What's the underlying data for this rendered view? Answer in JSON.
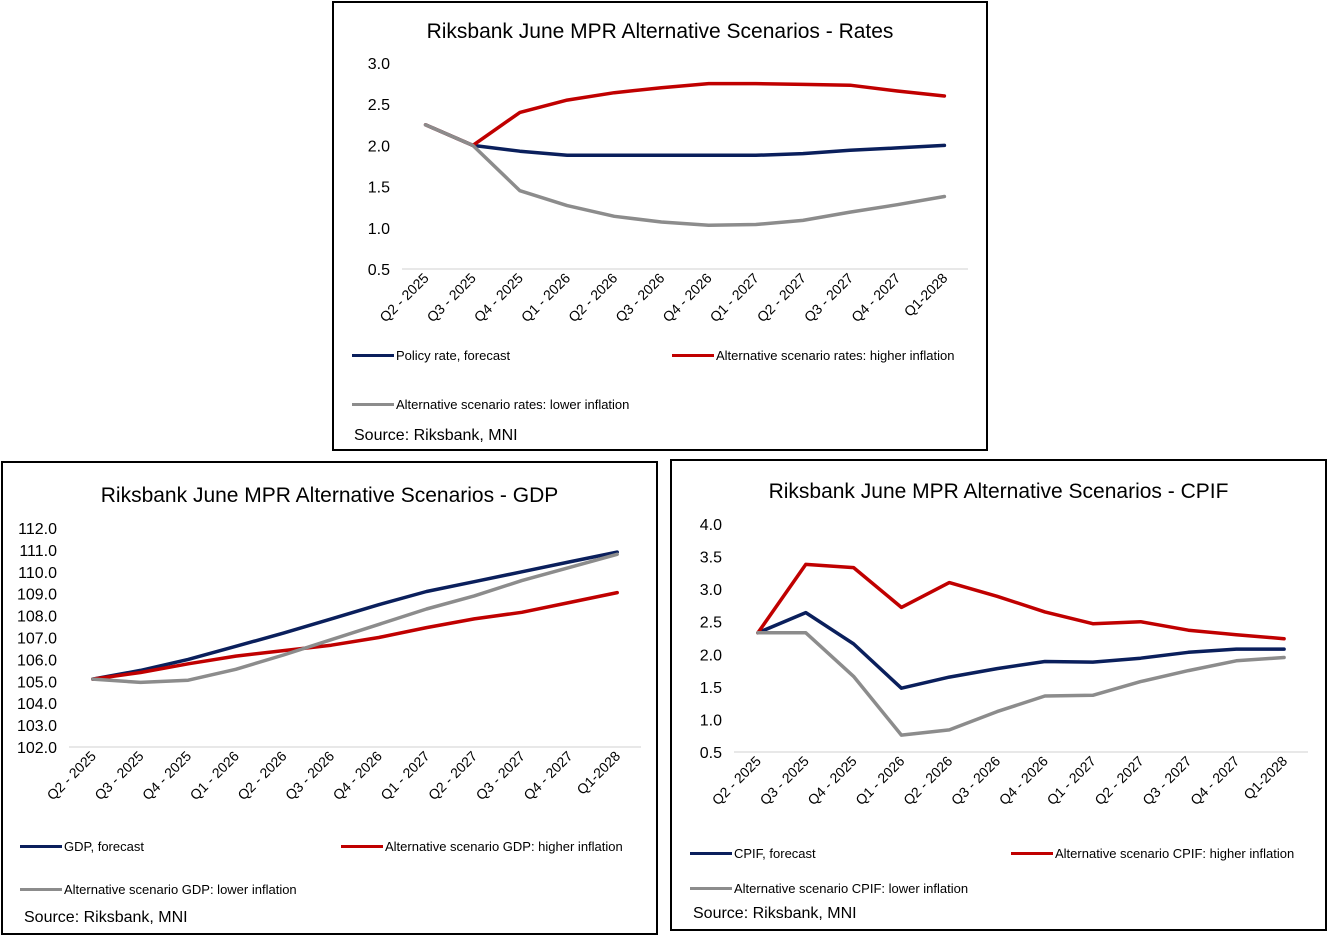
{
  "chart_data": [
    {
      "id": "rates",
      "type": "line",
      "title": "Riksbank  June  MPR Alternative  Scenarios - Rates",
      "source": "Source: Riksbank, MNI",
      "categories": [
        "Q2 - 2025",
        "Q3 - 2025",
        "Q4 - 2025",
        "Q1 - 2026",
        "Q2 - 2026",
        "Q3 - 2026",
        "Q4 - 2026",
        "Q1 - 2027",
        "Q2 - 2027",
        "Q3 - 2027",
        "Q4 - 2027",
        "Q1-2028"
      ],
      "ylim": [
        0.5,
        3.0
      ],
      "yticks": [
        "0.5",
        "1.0",
        "1.5",
        "2.0",
        "2.5",
        "3.0"
      ],
      "series": [
        {
          "name": "Policy rate, forecast",
          "color": "#0a1f5c",
          "values": [
            2.25,
            2.0,
            1.93,
            1.88,
            1.88,
            1.88,
            1.88,
            1.88,
            1.9,
            1.94,
            1.97,
            2.0
          ]
        },
        {
          "name": "Alternative scenario rates: higher inflation",
          "color": "#c00000",
          "values": [
            2.25,
            2.0,
            2.4,
            2.55,
            2.64,
            2.7,
            2.75,
            2.75,
            2.74,
            2.73,
            2.66,
            2.6
          ]
        },
        {
          "name": "Alternative scenario rates: lower inflation",
          "color": "#8c8c8c",
          "values": [
            2.25,
            2.0,
            1.45,
            1.27,
            1.14,
            1.07,
            1.03,
            1.04,
            1.09,
            1.19,
            1.28,
            1.38
          ]
        }
      ]
    },
    {
      "id": "gdp",
      "type": "line",
      "title": "Riksbank June MPR Alternative Scenarios - GDP",
      "source": "Source: Riksbank, MNI",
      "categories": [
        "Q2 - 2025",
        "Q3 - 2025",
        "Q4 - 2025",
        "Q1 - 2026",
        "Q2 - 2026",
        "Q3 - 2026",
        "Q4 - 2026",
        "Q1 - 2027",
        "Q2 - 2027",
        "Q3 - 2027",
        "Q4 - 2027",
        "Q1-2028"
      ],
      "ylim": [
        102.0,
        112.0
      ],
      "yticks": [
        "102.0",
        "103.0",
        "104.0",
        "105.0",
        "106.0",
        "107.0",
        "108.0",
        "109.0",
        "110.0",
        "111.0",
        "112.0"
      ],
      "series": [
        {
          "name": "GDP, forecast",
          "color": "#0a1f5c",
          "values": [
            105.1,
            105.5,
            106.0,
            106.6,
            107.2,
            107.85,
            108.5,
            109.1,
            109.55,
            110.0,
            110.45,
            110.9
          ]
        },
        {
          "name": "Alternative scenario GDP: higher inflation",
          "color": "#c00000",
          "values": [
            105.1,
            105.4,
            105.8,
            106.15,
            106.4,
            106.65,
            107.0,
            107.45,
            107.85,
            108.15,
            108.6,
            109.05
          ]
        },
        {
          "name": "Alternative scenario GDP: lower inflation",
          "color": "#8c8c8c",
          "values": [
            105.1,
            104.95,
            105.05,
            105.55,
            106.2,
            106.9,
            107.6,
            108.3,
            108.9,
            109.6,
            110.2,
            110.8
          ]
        }
      ]
    },
    {
      "id": "cpif",
      "type": "line",
      "title": "Riksbank June MPR Alternative Scenarios - CPIF",
      "source": "Source: Riksbank, MNI",
      "categories": [
        "Q2 - 2025",
        "Q3 - 2025",
        "Q4 - 2025",
        "Q1 - 2026",
        "Q2 - 2026",
        "Q3 - 2026",
        "Q4 - 2026",
        "Q1 - 2027",
        "Q2 - 2027",
        "Q3 - 2027",
        "Q4 - 2027",
        "Q1-2028"
      ],
      "ylim": [
        0.5,
        4.0
      ],
      "yticks": [
        "0.5",
        "1.0",
        "1.5",
        "2.0",
        "2.5",
        "3.0",
        "3.5",
        "4.0"
      ],
      "series": [
        {
          "name": "CPIF, forecast",
          "color": "#0a1f5c",
          "values": [
            2.33,
            2.64,
            2.16,
            1.48,
            1.65,
            1.78,
            1.89,
            1.88,
            1.94,
            2.03,
            2.08,
            2.08
          ]
        },
        {
          "name": "Alternative scenario CPIF: higher inflation",
          "color": "#c00000",
          "values": [
            2.33,
            3.38,
            3.33,
            2.72,
            3.1,
            2.89,
            2.65,
            2.47,
            2.5,
            2.37,
            2.3,
            2.24
          ]
        },
        {
          "name": "Alternative scenario CPIF: lower inflation",
          "color": "#8c8c8c",
          "values": [
            2.33,
            2.33,
            1.66,
            0.76,
            0.84,
            1.12,
            1.36,
            1.37,
            1.58,
            1.75,
            1.9,
            1.95
          ]
        }
      ]
    }
  ]
}
